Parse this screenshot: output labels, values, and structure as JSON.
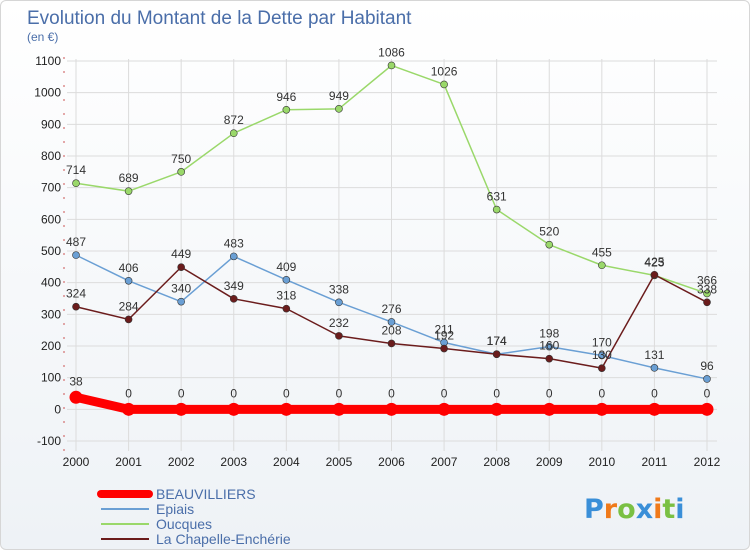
{
  "chart_data": {
    "type": "line",
    "title": "Evolution du Montant de la Dette par Habitant",
    "subtitle": "(en €)",
    "ylim": [
      -100,
      1100
    ],
    "yticks": [
      -100,
      0,
      100,
      200,
      300,
      400,
      500,
      600,
      700,
      800,
      900,
      1000,
      1100
    ],
    "grid": true,
    "legend_position": "bottom-left",
    "x": [
      "2000",
      "2001",
      "2002",
      "2003",
      "2004",
      "2005",
      "2006",
      "2007",
      "2008",
      "2009",
      "2010",
      "2011",
      "2012"
    ],
    "series": [
      {
        "name": "BEAUVILLIERS",
        "color": "#ff0000",
        "values": [
          38,
          0,
          0,
          0,
          0,
          0,
          0,
          0,
          0,
          0,
          0,
          0,
          0
        ]
      },
      {
        "name": "Epiais",
        "color": "#6a9fd4",
        "values": [
          487,
          406,
          340,
          483,
          409,
          338,
          276,
          211,
          174,
          198,
          170,
          131,
          96
        ]
      },
      {
        "name": "Oucques",
        "color": "#9ad86a",
        "values": [
          714,
          689,
          750,
          872,
          946,
          949,
          1086,
          1026,
          631,
          520,
          455,
          423,
          366
        ]
      },
      {
        "name": "La Chapelle-Enchérie",
        "color": "#6b1c1c",
        "values": [
          324,
          284,
          449,
          349,
          318,
          232,
          208,
          192,
          174,
          160,
          130,
          425,
          338
        ]
      }
    ]
  },
  "logo": {
    "text": "Proxiti",
    "letter_colors": [
      "#3a8fd8",
      "#f07a1a",
      "#7ac043",
      "#3a8fd8",
      "#f07a1a",
      "#7ac043",
      "#3a8fd8"
    ]
  }
}
